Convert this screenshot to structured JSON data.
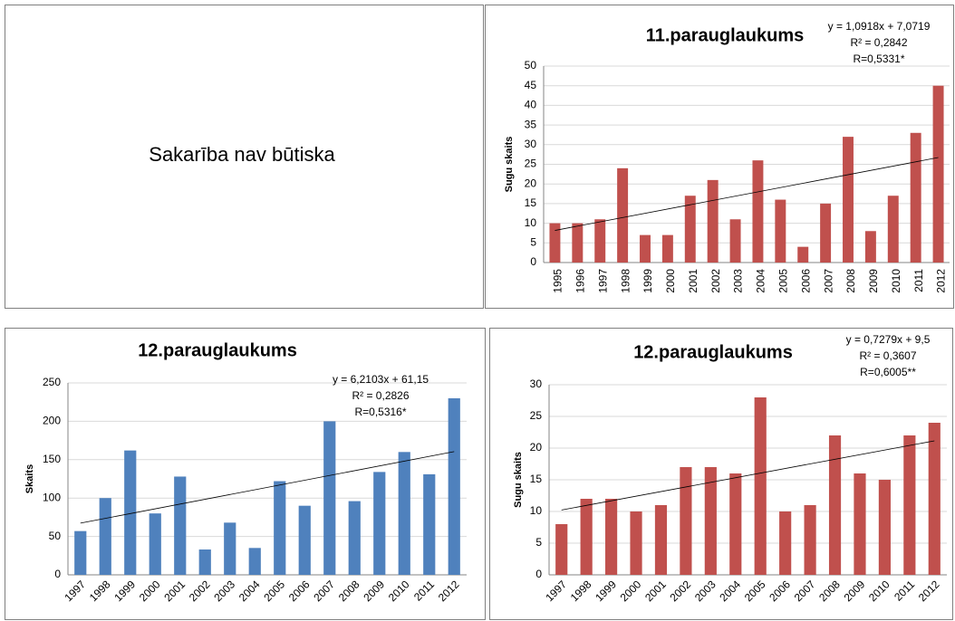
{
  "panel_text": "Sakarība nav būtiska",
  "chart_data": [
    {
      "type": "bar",
      "title": "11.parauglaukums",
      "y_label": "Sugu skaits",
      "color": "#c0504d",
      "categories": [
        "1995",
        "1996",
        "1997",
        "1998",
        "1999",
        "2000",
        "2001",
        "2002",
        "2003",
        "2004",
        "2005",
        "2006",
        "2007",
        "2008",
        "2009",
        "2010",
        "2011",
        "2012"
      ],
      "values": [
        10,
        10,
        11,
        24,
        7,
        7,
        17,
        21,
        11,
        26,
        16,
        4,
        15,
        32,
        8,
        17,
        33,
        45
      ],
      "ylim": [
        0,
        50
      ],
      "yticks": [
        0,
        5,
        10,
        15,
        20,
        25,
        30,
        35,
        40,
        45,
        50
      ],
      "grid": true,
      "trendline": {
        "slope": 1.0918,
        "intercept": 7.0719
      },
      "annotations": [
        "y = 1,0918x + 7,0719",
        "R² = 0,2842",
        "R=0,5331*"
      ]
    },
    {
      "type": "bar",
      "title": "12.parauglaukums",
      "y_label": "Skaits",
      "color": "#4f81bd",
      "categories": [
        "1997",
        "1998",
        "1999",
        "2000",
        "2001",
        "2002",
        "2003",
        "2004",
        "2005",
        "2006",
        "2007",
        "2008",
        "2009",
        "2010",
        "2011",
        "2012"
      ],
      "values": [
        57,
        100,
        162,
        80,
        128,
        33,
        68,
        35,
        122,
        90,
        200,
        96,
        134,
        160,
        131,
        230
      ],
      "ylim": [
        0,
        250
      ],
      "yticks": [
        0,
        50,
        100,
        150,
        200,
        250
      ],
      "grid": true,
      "trendline": {
        "slope": 6.2103,
        "intercept": 61.15
      },
      "annotations": [
        "y = 6,2103x + 61,15",
        "R² = 0,2826",
        "R=0,5316*"
      ]
    },
    {
      "type": "bar",
      "title": "12.parauglaukums",
      "y_label": "Sugu skaits",
      "color": "#c0504d",
      "categories": [
        "1997",
        "1998",
        "1999",
        "2000",
        "2001",
        "2002",
        "2003",
        "2004",
        "2005",
        "2006",
        "2007",
        "2008",
        "2009",
        "2010",
        "2011",
        "2012"
      ],
      "values": [
        8,
        12,
        12,
        10,
        11,
        17,
        17,
        16,
        28,
        10,
        11,
        22,
        16,
        15,
        22,
        24
      ],
      "ylim": [
        0,
        30
      ],
      "yticks": [
        0,
        5,
        10,
        15,
        20,
        25,
        30
      ],
      "grid": true,
      "trendline": {
        "slope": 0.7279,
        "intercept": 9.5
      },
      "annotations": [
        "y = 0,7279x + 9,5",
        "R² = 0,3607",
        "R=0,6005**"
      ]
    }
  ]
}
